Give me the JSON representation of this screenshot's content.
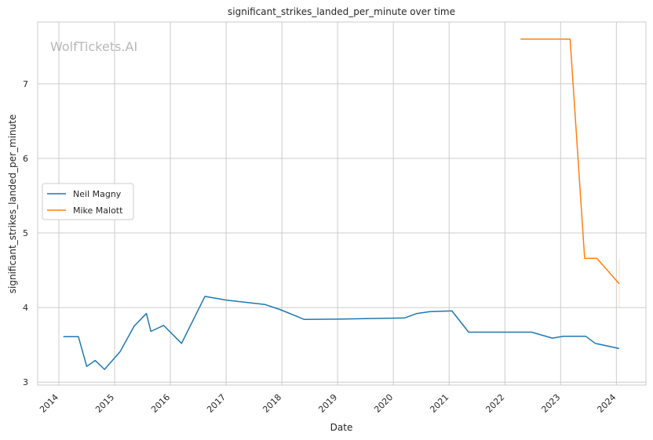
{
  "watermark": "WolfTickets.AI",
  "chart_data": {
    "type": "line",
    "title": "significant_strikes_landed_per_minute over time",
    "xlabel": "Date",
    "ylabel": "significant_strikes_landed_per_minute",
    "x_ticks": [
      "2014",
      "2015",
      "2016",
      "2017",
      "2018",
      "2019",
      "2020",
      "2021",
      "2022",
      "2023",
      "2024"
    ],
    "y_ticks": [
      3,
      4,
      5,
      6,
      7
    ],
    "xlim": [
      2013.62,
      2024.53
    ],
    "ylim": [
      2.96,
      7.83
    ],
    "grid": true,
    "legend": "center-left",
    "series": [
      {
        "name": "Neil Magny",
        "color": "#1f77b4",
        "points": [
          [
            2014.08,
            3.61
          ],
          [
            2014.35,
            3.61
          ],
          [
            2014.5,
            3.21
          ],
          [
            2014.65,
            3.29
          ],
          [
            2014.82,
            3.17
          ],
          [
            2015.1,
            3.41
          ],
          [
            2015.35,
            3.75
          ],
          [
            2015.57,
            3.92
          ],
          [
            2015.65,
            3.68
          ],
          [
            2015.88,
            3.76
          ],
          [
            2016.2,
            3.52
          ],
          [
            2016.62,
            4.15
          ],
          [
            2017.0,
            4.1
          ],
          [
            2017.7,
            4.04
          ],
          [
            2017.98,
            3.97
          ],
          [
            2018.4,
            3.84
          ],
          [
            2019.0,
            3.845
          ],
          [
            2020.2,
            3.86
          ],
          [
            2020.42,
            3.92
          ],
          [
            2020.65,
            3.945
          ],
          [
            2021.05,
            3.955
          ],
          [
            2021.35,
            3.67
          ],
          [
            2022.48,
            3.67
          ],
          [
            2022.85,
            3.59
          ],
          [
            2023.05,
            3.615
          ],
          [
            2023.45,
            3.615
          ],
          [
            2023.62,
            3.52
          ],
          [
            2024.05,
            3.45
          ]
        ]
      },
      {
        "name": "Mike Malott",
        "color": "#ff7f0e",
        "points": [
          [
            2022.28,
            7.6
          ],
          [
            2023.17,
            7.6
          ],
          [
            2023.43,
            4.66
          ],
          [
            2023.65,
            4.66
          ],
          [
            2024.05,
            4.32
          ]
        ],
        "band": {
          "x": 2024.05,
          "low": 4.0,
          "high": 4.65
        }
      }
    ]
  }
}
